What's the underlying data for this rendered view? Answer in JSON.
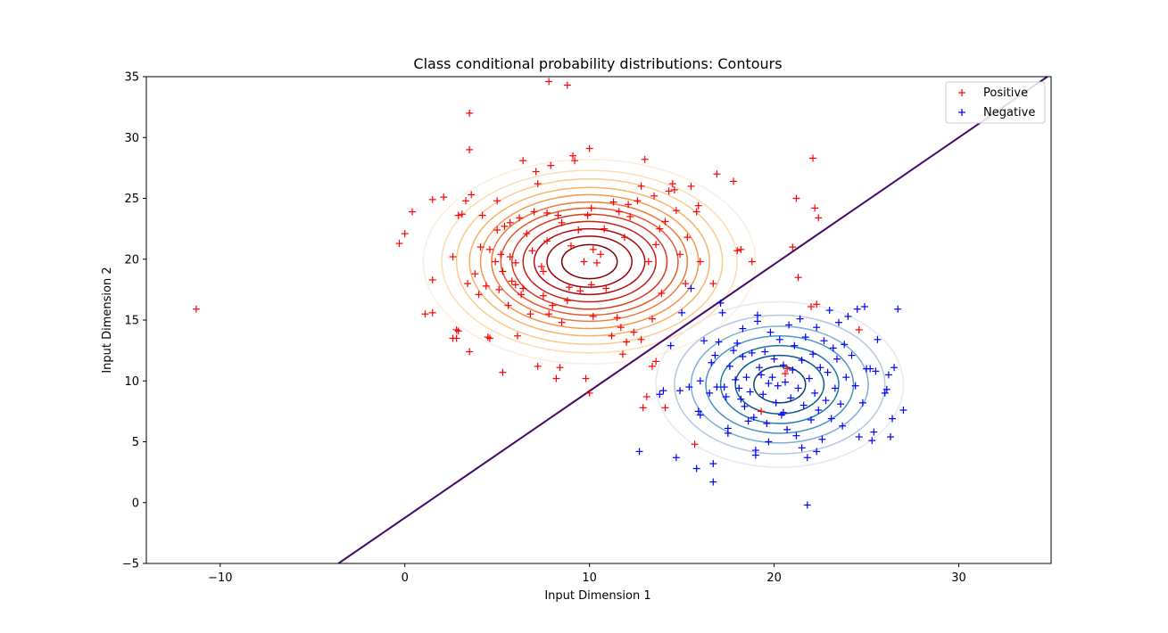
{
  "chart_data": {
    "type": "scatter",
    "title": "Class conditional probability distributions: Contours",
    "xlabel": "Input Dimension 1",
    "ylabel": "Input Dimension 2",
    "xlim": [
      -14,
      35
    ],
    "ylim": [
      -5,
      35
    ],
    "x_ticks": [
      -10,
      0,
      10,
      20,
      30
    ],
    "y_ticks": [
      -5,
      0,
      5,
      10,
      15,
      20,
      25,
      30,
      35
    ],
    "x_tick_labels": [
      "−10",
      "0",
      "10",
      "20",
      "30"
    ],
    "y_tick_labels": [
      "−5",
      "0",
      "5",
      "10",
      "15",
      "20",
      "25",
      "30",
      "35"
    ],
    "grid": false,
    "legend_position": "top-right",
    "series": [
      {
        "name": "Positive",
        "color": "#ff0000",
        "marker": "+",
        "points": [
          [
            -11.3,
            15.9
          ],
          [
            -0.3,
            21.3
          ],
          [
            0.0,
            22.1
          ],
          [
            0.4,
            23.9
          ],
          [
            1.1,
            15.5
          ],
          [
            1.5,
            15.6
          ],
          [
            1.5,
            18.3
          ],
          [
            1.5,
            24.9
          ],
          [
            2.1,
            25.1
          ],
          [
            2.6,
            13.5
          ],
          [
            2.6,
            20.2
          ],
          [
            2.8,
            14.2
          ],
          [
            2.8,
            13.5
          ],
          [
            2.9,
            14.1
          ],
          [
            2.9,
            23.6
          ],
          [
            3.1,
            23.7
          ],
          [
            3.3,
            24.8
          ],
          [
            3.4,
            18.0
          ],
          [
            3.5,
            32.0
          ],
          [
            3.5,
            29.0
          ],
          [
            3.5,
            12.4
          ],
          [
            3.6,
            25.3
          ],
          [
            3.8,
            18.8
          ],
          [
            4.0,
            17.1
          ],
          [
            4.1,
            21.0
          ],
          [
            4.2,
            23.6
          ],
          [
            4.4,
            17.8
          ],
          [
            4.5,
            13.6
          ],
          [
            4.6,
            13.5
          ],
          [
            4.6,
            20.8
          ],
          [
            4.9,
            19.8
          ],
          [
            5.0,
            24.8
          ],
          [
            5.0,
            22.4
          ],
          [
            5.1,
            17.5
          ],
          [
            5.2,
            20.4
          ],
          [
            5.3,
            10.7
          ],
          [
            5.3,
            19.0
          ],
          [
            5.4,
            22.7
          ],
          [
            5.6,
            16.2
          ],
          [
            5.7,
            23.0
          ],
          [
            5.7,
            20.2
          ],
          [
            5.8,
            18.2
          ],
          [
            6.0,
            19.7
          ],
          [
            6.0,
            17.9
          ],
          [
            6.1,
            13.7
          ],
          [
            6.2,
            23.4
          ],
          [
            6.3,
            17.1
          ],
          [
            6.4,
            17.6
          ],
          [
            6.4,
            28.1
          ],
          [
            6.6,
            22.1
          ],
          [
            6.8,
            15.5
          ],
          [
            6.9,
            20.7
          ],
          [
            7.0,
            23.9
          ],
          [
            7.1,
            27.2
          ],
          [
            7.2,
            26.2
          ],
          [
            7.2,
            11.2
          ],
          [
            7.4,
            19.4
          ],
          [
            7.5,
            19.0
          ],
          [
            7.5,
            17.0
          ],
          [
            7.7,
            21.5
          ],
          [
            7.7,
            23.8
          ],
          [
            7.8,
            34.6
          ],
          [
            7.8,
            15.5
          ],
          [
            7.9,
            27.7
          ],
          [
            8.0,
            16.2
          ],
          [
            8.2,
            10.2
          ],
          [
            8.3,
            23.6
          ],
          [
            8.4,
            11.1
          ],
          [
            8.5,
            23.0
          ],
          [
            8.5,
            14.8
          ],
          [
            8.8,
            34.3
          ],
          [
            8.8,
            16.6
          ],
          [
            9.0,
            21.1
          ],
          [
            9.1,
            28.5
          ],
          [
            9.2,
            28.1
          ],
          [
            9.4,
            22.4
          ],
          [
            9.5,
            17.4
          ],
          [
            9.7,
            19.8
          ],
          [
            9.8,
            10.2
          ],
          [
            9.9,
            23.6
          ],
          [
            10.0,
            29.1
          ],
          [
            10.0,
            9.0
          ],
          [
            10.1,
            24.2
          ],
          [
            10.1,
            17.9
          ],
          [
            10.2,
            15.3
          ],
          [
            10.2,
            20.8
          ],
          [
            10.4,
            19.7
          ],
          [
            10.6,
            20.4
          ],
          [
            10.8,
            22.5
          ],
          [
            10.9,
            17.6
          ],
          [
            11.2,
            13.7
          ],
          [
            11.3,
            24.7
          ],
          [
            11.5,
            15.2
          ],
          [
            11.6,
            23.9
          ],
          [
            11.7,
            14.4
          ],
          [
            11.8,
            12.2
          ],
          [
            11.9,
            21.8
          ],
          [
            12.1,
            24.5
          ],
          [
            12.2,
            23.5
          ],
          [
            12.4,
            14.0
          ],
          [
            12.6,
            24.8
          ],
          [
            12.8,
            26.0
          ],
          [
            12.8,
            13.4
          ],
          [
            12.9,
            7.8
          ],
          [
            13.0,
            28.2
          ],
          [
            13.1,
            8.7
          ],
          [
            13.2,
            19.8
          ],
          [
            13.4,
            15.1
          ],
          [
            13.5,
            25.2
          ],
          [
            13.6,
            11.6
          ],
          [
            13.6,
            21.2
          ],
          [
            13.8,
            22.5
          ],
          [
            13.9,
            17.2
          ],
          [
            14.1,
            23.1
          ],
          [
            14.1,
            7.8
          ],
          [
            14.3,
            25.6
          ],
          [
            14.5,
            26.2
          ],
          [
            14.6,
            25.7
          ],
          [
            14.7,
            24.0
          ],
          [
            14.9,
            20.4
          ],
          [
            15.2,
            18.0
          ],
          [
            15.3,
            21.8
          ],
          [
            15.5,
            26.0
          ],
          [
            15.7,
            4.8
          ],
          [
            15.8,
            23.9
          ],
          [
            15.9,
            24.4
          ],
          [
            16.0,
            19.8
          ],
          [
            16.7,
            18.0
          ],
          [
            16.9,
            27.0
          ],
          [
            17.8,
            26.4
          ],
          [
            18.0,
            20.7
          ],
          [
            18.2,
            20.8
          ],
          [
            18.8,
            19.8
          ],
          [
            21.0,
            21.0
          ],
          [
            21.2,
            25.0
          ],
          [
            21.3,
            18.5
          ],
          [
            22.0,
            16.1
          ],
          [
            22.1,
            28.3
          ],
          [
            22.2,
            24.2
          ],
          [
            22.3,
            16.3
          ],
          [
            22.4,
            23.4
          ],
          [
            20.6,
            10.6
          ],
          [
            19.3,
            7.5
          ],
          [
            20.7,
            11.0
          ],
          [
            24.6,
            14.2
          ],
          [
            13.4,
            11.2
          ],
          [
            12.0,
            13.2
          ],
          [
            8.9,
            17.7
          ]
        ]
      },
      {
        "name": "Negative",
        "color": "#0000ff",
        "marker": "+",
        "points": [
          [
            12.7,
            4.2
          ],
          [
            13.8,
            8.9
          ],
          [
            14.0,
            9.2
          ],
          [
            14.4,
            12.9
          ],
          [
            14.7,
            3.7
          ],
          [
            14.9,
            9.2
          ],
          [
            15.0,
            15.6
          ],
          [
            15.4,
            9.5
          ],
          [
            15.5,
            17.6
          ],
          [
            15.8,
            2.8
          ],
          [
            15.9,
            7.5
          ],
          [
            16.0,
            7.2
          ],
          [
            16.0,
            10.0
          ],
          [
            16.2,
            13.3
          ],
          [
            16.5,
            9.0
          ],
          [
            16.6,
            11.5
          ],
          [
            16.7,
            3.2
          ],
          [
            16.7,
            1.7
          ],
          [
            16.8,
            12.1
          ],
          [
            16.9,
            9.5
          ],
          [
            17.0,
            13.2
          ],
          [
            17.1,
            16.4
          ],
          [
            17.2,
            15.6
          ],
          [
            17.3,
            9.5
          ],
          [
            17.4,
            8.7
          ],
          [
            17.5,
            6.1
          ],
          [
            17.5,
            5.7
          ],
          [
            17.6,
            11.2
          ],
          [
            17.8,
            12.5
          ],
          [
            17.9,
            10.1
          ],
          [
            18.0,
            13.1
          ],
          [
            18.1,
            9.4
          ],
          [
            18.2,
            8.5
          ],
          [
            18.3,
            12.0
          ],
          [
            18.4,
            7.9
          ],
          [
            18.5,
            10.3
          ],
          [
            18.6,
            6.7
          ],
          [
            18.7,
            9.1
          ],
          [
            18.8,
            12.3
          ],
          [
            18.9,
            7.0
          ],
          [
            19.0,
            4.3
          ],
          [
            19.0,
            3.9
          ],
          [
            19.1,
            14.9
          ],
          [
            19.1,
            15.4
          ],
          [
            19.2,
            11.1
          ],
          [
            19.3,
            10.5
          ],
          [
            19.4,
            8.9
          ],
          [
            19.5,
            12.4
          ],
          [
            19.6,
            6.5
          ],
          [
            19.7,
            9.8
          ],
          [
            19.8,
            14.0
          ],
          [
            19.9,
            10.3
          ],
          [
            20.0,
            11.8
          ],
          [
            20.1,
            8.2
          ],
          [
            20.2,
            9.6
          ],
          [
            20.3,
            13.4
          ],
          [
            20.4,
            7.2
          ],
          [
            20.5,
            11.3
          ],
          [
            20.6,
            9.9
          ],
          [
            20.7,
            6.0
          ],
          [
            20.8,
            14.6
          ],
          [
            20.9,
            8.6
          ],
          [
            21.0,
            10.9
          ],
          [
            21.1,
            12.9
          ],
          [
            21.2,
            5.5
          ],
          [
            21.3,
            9.4
          ],
          [
            21.4,
            15.1
          ],
          [
            21.5,
            11.7
          ],
          [
            21.6,
            8.0
          ],
          [
            21.7,
            13.6
          ],
          [
            21.8,
            -0.2
          ],
          [
            21.8,
            3.7
          ],
          [
            21.9,
            10.2
          ],
          [
            22.0,
            6.8
          ],
          [
            22.1,
            12.2
          ],
          [
            22.2,
            9.0
          ],
          [
            22.3,
            14.4
          ],
          [
            22.4,
            7.6
          ],
          [
            22.5,
            11.1
          ],
          [
            22.6,
            5.2
          ],
          [
            22.7,
            13.3
          ],
          [
            22.8,
            8.4
          ],
          [
            22.9,
            10.7
          ],
          [
            23.0,
            15.8
          ],
          [
            23.1,
            6.9
          ],
          [
            23.2,
            12.7
          ],
          [
            23.3,
            9.4
          ],
          [
            23.4,
            11.8
          ],
          [
            23.5,
            14.8
          ],
          [
            23.6,
            8.1
          ],
          [
            23.7,
            6.3
          ],
          [
            23.8,
            13.0
          ],
          [
            23.9,
            10.3
          ],
          [
            24.0,
            15.3
          ],
          [
            24.2,
            12.1
          ],
          [
            24.4,
            9.6
          ],
          [
            24.5,
            15.9
          ],
          [
            24.6,
            5.4
          ],
          [
            24.8,
            8.2
          ],
          [
            24.9,
            16.1
          ],
          [
            25.0,
            11.0
          ],
          [
            25.2,
            11.0
          ],
          [
            25.3,
            5.1
          ],
          [
            25.4,
            5.8
          ],
          [
            25.5,
            10.8
          ],
          [
            25.6,
            13.4
          ],
          [
            26.0,
            9.0
          ],
          [
            26.1,
            9.3
          ],
          [
            26.2,
            10.5
          ],
          [
            26.3,
            5.4
          ],
          [
            26.4,
            6.9
          ],
          [
            26.5,
            11.1
          ],
          [
            26.7,
            15.9
          ],
          [
            27.0,
            7.6
          ],
          [
            18.3,
            14.3
          ],
          [
            20.5,
            7.4
          ],
          [
            21.5,
            4.5
          ],
          [
            19.7,
            5.0
          ],
          [
            22.3,
            4.2
          ]
        ]
      }
    ],
    "contours": [
      {
        "class": "Positive",
        "colormap": "Oranges-to-darkred",
        "center": [
          10.0,
          19.8
        ],
        "semi_axes_x": [
          1.5,
          2.3,
          3.0,
          3.6,
          4.2,
          4.8,
          5.3,
          5.9,
          6.5,
          7.2,
          8.0,
          9.0
        ],
        "semi_axes_y": [
          1.4,
          2.1,
          2.7,
          3.3,
          3.9,
          4.4,
          4.9,
          5.5,
          6.1,
          6.8,
          7.5,
          8.4
        ],
        "colors": [
          "#7f0000",
          "#9e0308",
          "#b30c10",
          "#c81f16",
          "#d93a20",
          "#e55a2c",
          "#ee7a3c",
          "#f4984f",
          "#f8b36a",
          "#fbca8d",
          "#fddcb2",
          "#fdeee0"
        ]
      },
      {
        "class": "Negative",
        "colormap": "Blues-to-teal",
        "center": [
          20.3,
          9.7
        ],
        "semi_axes_x": [
          1.4,
          2.4,
          3.2,
          4.0,
          4.8,
          5.7,
          6.7
        ],
        "semi_axes_y": [
          1.5,
          2.4,
          3.2,
          4.0,
          4.8,
          5.7,
          6.8
        ],
        "colors": [
          "#08446e",
          "#0a5b8a",
          "#2079a8",
          "#4a95c2",
          "#7eaed4",
          "#b4c8e4",
          "#e6e9f5"
        ]
      }
    ],
    "decision_boundary": {
      "color": "#420a68",
      "x": [
        -3.6,
        34.8
      ],
      "y": [
        -5.0,
        35.0
      ]
    }
  }
}
